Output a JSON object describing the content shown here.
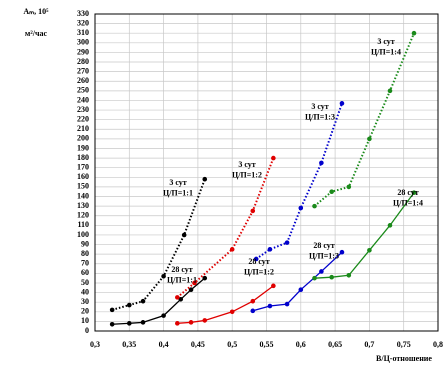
{
  "chart_data": {
    "type": "line",
    "ylabel": [
      "Aₘ, 10⁵",
      "м²/час"
    ],
    "xlabel": "В/Ц-отношение",
    "xlim": [
      0.3,
      0.8
    ],
    "ylim": [
      0,
      330
    ],
    "xticks": [
      {
        "value": 0.3,
        "label": "0,3"
      },
      {
        "value": 0.35,
        "label": "0,35"
      },
      {
        "value": 0.4,
        "label": "0,4"
      },
      {
        "value": 0.45,
        "label": "0,45"
      },
      {
        "value": 0.5,
        "label": "0,5"
      },
      {
        "value": 0.55,
        "label": "0,55"
      },
      {
        "value": 0.6,
        "label": "0,6"
      },
      {
        "value": 0.65,
        "label": "0,65"
      },
      {
        "value": 0.7,
        "label": "0,7"
      },
      {
        "value": 0.75,
        "label": "0,75"
      },
      {
        "value": 0.8,
        "label": "0,8"
      }
    ],
    "yticks": [
      0,
      10,
      20,
      30,
      40,
      50,
      60,
      70,
      80,
      90,
      100,
      110,
      120,
      130,
      140,
      150,
      160,
      170,
      180,
      190,
      200,
      210,
      220,
      230,
      240,
      250,
      260,
      270,
      280,
      290,
      300,
      310,
      320,
      330
    ],
    "grid": true,
    "series": [
      {
        "color": "#000000",
        "style": "dotted",
        "x": [
          0.325,
          0.35,
          0.37,
          0.4,
          0.43,
          0.46
        ],
        "values": [
          22,
          27,
          31,
          57,
          100,
          158
        ]
      },
      {
        "color": "#000000",
        "style": "solid",
        "x": [
          0.325,
          0.35,
          0.37,
          0.4,
          0.425,
          0.44,
          0.46
        ],
        "values": [
          7,
          8,
          9,
          16,
          33,
          43,
          55
        ]
      },
      {
        "color": "#e00000",
        "style": "dotted",
        "x": [
          0.42,
          0.445,
          0.5,
          0.53,
          0.56
        ],
        "values": [
          35,
          50,
          85,
          125,
          180
        ]
      },
      {
        "color": "#e00000",
        "style": "solid",
        "x": [
          0.42,
          0.44,
          0.46,
          0.5,
          0.53,
          0.56
        ],
        "values": [
          8,
          9,
          11,
          20,
          31,
          47
        ]
      },
      {
        "color": "#0000cc",
        "style": "dotted",
        "x": [
          0.535,
          0.555,
          0.58,
          0.6,
          0.63,
          0.66
        ],
        "values": [
          75,
          85,
          92,
          128,
          175,
          237
        ]
      },
      {
        "color": "#0000cc",
        "style": "solid",
        "x": [
          0.53,
          0.555,
          0.58,
          0.6,
          0.63,
          0.66
        ],
        "values": [
          21,
          26,
          28,
          43,
          62,
          82
        ]
      },
      {
        "color": "#1a8a1a",
        "style": "dotted",
        "x": [
          0.62,
          0.645,
          0.67,
          0.7,
          0.73,
          0.765
        ],
        "values": [
          130,
          145,
          150,
          200,
          250,
          310
        ]
      },
      {
        "color": "#1a8a1a",
        "style": "solid",
        "x": [
          0.62,
          0.645,
          0.67,
          0.7,
          0.73,
          0.765
        ],
        "values": [
          55,
          56,
          58,
          84,
          110,
          144
        ]
      }
    ],
    "annotations": [
      [
        "3 сут",
        "Ц/П=1:1"
      ],
      [
        "28 сут",
        "Ц/П=1:1"
      ],
      [
        "3 сут",
        "Ц/П=1:2"
      ],
      [
        "28 сут",
        "Ц/П=1:2"
      ],
      [
        "3 сут",
        "Ц/П=1:3"
      ],
      [
        "28 сут",
        "Ц/П=1:3"
      ],
      [
        "3 сут",
        "Ц/П=1:4"
      ],
      [
        "28 сут",
        "Ц/П=1:4"
      ]
    ]
  }
}
